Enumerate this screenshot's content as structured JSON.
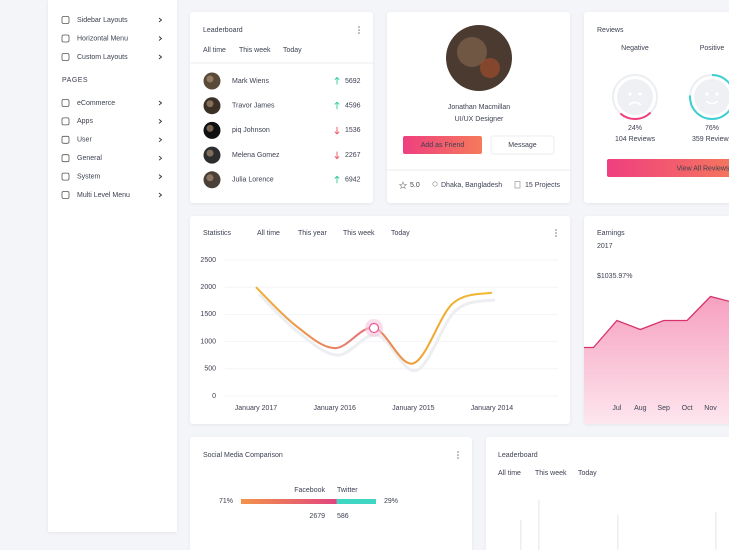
{
  "sidebar": {
    "items": [
      "Sidebar Layouts",
      "Horizontal Menu",
      "Custom Layouts"
    ],
    "section": "PAGES",
    "pages": [
      "eCommerce",
      "Apps",
      "User",
      "General",
      "System",
      "Multi Level Menu"
    ]
  },
  "leaderboard": {
    "title": "Leaderboard",
    "tabs": [
      "All time",
      "This week",
      "Today"
    ],
    "rows": [
      {
        "name": "Mark Wiens",
        "score": 5692,
        "trend": "up"
      },
      {
        "name": "Travor James",
        "score": 4596,
        "trend": "up"
      },
      {
        "name": "piq Johnson",
        "score": 1536,
        "trend": "down"
      },
      {
        "name": "Melena Gomez",
        "score": 2267,
        "trend": "down"
      },
      {
        "name": "Julia Lorence",
        "score": 6942,
        "trend": "up"
      }
    ]
  },
  "profile": {
    "name": "Jonathan Macmillan",
    "role": "UI/UX Designer",
    "buttons": [
      "Add as Friend",
      "Message"
    ],
    "rating": "5.0",
    "location": "Dhaka, Bangladesh",
    "projects": "15 Projects"
  },
  "reviews": {
    "title": "Reviews",
    "items": [
      {
        "label": "Negative",
        "percent": 24,
        "percent_label": "24%",
        "count": "104 Reviews",
        "color": "#ef3f7c"
      },
      {
        "label": "Positive",
        "percent": 76,
        "percent_label": "76%",
        "count": "359 Reviews",
        "color": "#3fd0d4"
      }
    ],
    "button": "View All Reviews"
  },
  "statistics": {
    "title": "Statistics",
    "tabs": [
      "All time",
      "This year",
      "This week",
      "Today"
    ],
    "chart": {
      "type": "line",
      "categories": [
        "January 2017",
        null,
        "January 2016",
        null,
        "January 2015",
        null,
        "January 2014"
      ],
      "values": [
        2000,
        1300,
        880,
        1250,
        600,
        1700,
        1900
      ],
      "color": "#f0b030",
      "ylim": [
        0,
        2500
      ],
      "yticks": [
        0,
        500,
        1000,
        1500,
        2000,
        2500
      ],
      "grid": true
    }
  },
  "earnings": {
    "title": "Earnings",
    "year": "2017",
    "amount": "$1035.97%",
    "chart": {
      "type": "area",
      "categories": [
        null,
        "Jul",
        "Aug",
        "Sep",
        "Oct",
        "Nov",
        null
      ],
      "values": [
        51,
        69,
        63,
        69,
        69,
        85,
        81
      ],
      "color": "#d6336c"
    }
  },
  "social": {
    "title": "Social Media Comparison",
    "series": [
      {
        "name": "Facebook",
        "value": 71,
        "value_label": "71%",
        "count": 2679
      },
      {
        "name": "Twitter",
        "value": 29,
        "value_label": "29%",
        "count": 586
      }
    ]
  },
  "leaderboard2": {
    "title": "Leaderboard",
    "tabs": [
      "All time",
      "This week",
      "Today"
    ]
  }
}
